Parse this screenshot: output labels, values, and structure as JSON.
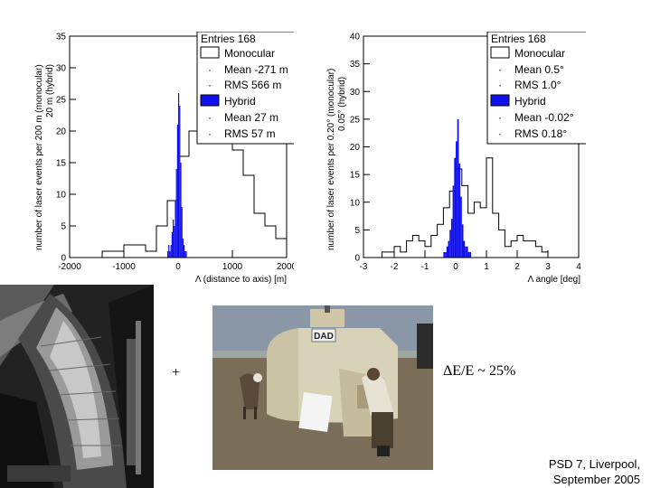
{
  "chart_data": [
    {
      "type": "histogram",
      "xlabel": "Λ (distance to axis) [m]",
      "ylabel_primary": "number of laser events per 200 m (monocular)",
      "ylabel_secondary": "20 m (hybrid)",
      "xlim": [
        -2000,
        2000
      ],
      "ylim": [
        0,
        35
      ],
      "xticks": [
        "-2000",
        "-1000",
        "0",
        "1000",
        "2000"
      ],
      "yticks": [
        "0",
        "5",
        "10",
        "15",
        "20",
        "25",
        "30",
        "35"
      ],
      "legend": {
        "entries": "Entries 168",
        "monocular_label": "Monocular",
        "monocular_mean": "Mean -271 m",
        "monocular_rms": "RMS 566 m",
        "hybrid_label": "Hybrid",
        "hybrid_mean": "Mean 27 m",
        "hybrid_rms": "RMS 57 m"
      },
      "series": [
        {
          "name": "Monocular",
          "style": "outline",
          "bin_width": 200,
          "bin_start": -2000,
          "values": [
            0,
            0,
            0,
            1,
            1,
            2,
            2,
            1,
            5,
            9,
            16,
            20,
            20,
            19,
            18,
            17,
            13,
            7,
            5,
            3,
            3,
            1,
            1,
            0,
            0,
            0,
            0,
            0,
            0,
            0
          ]
        },
        {
          "name": "Hybrid",
          "style": "filled",
          "color": "#1010ee",
          "bin_width": 20,
          "bin_start": -300,
          "values": [
            0,
            0,
            0,
            0,
            0,
            1,
            2,
            1,
            2,
            4,
            6,
            5,
            9,
            14,
            21,
            26,
            24,
            15,
            8,
            3,
            2,
            1,
            1,
            0,
            0,
            0,
            0,
            0,
            0,
            0
          ]
        }
      ]
    },
    {
      "type": "histogram",
      "xlabel": "Λ angle [deg]",
      "ylabel_primary": "number of laser events per 0.20° (monocular)",
      "ylabel_secondary": "0.05° (hybrid)",
      "xlim": [
        -3,
        4
      ],
      "ylim": [
        0,
        40
      ],
      "xticks": [
        "-3",
        "-2",
        "-1",
        "0",
        "1",
        "2",
        "3",
        "4"
      ],
      "yticks": [
        "0",
        "5",
        "10",
        "15",
        "20",
        "25",
        "30",
        "35",
        "40"
      ],
      "legend": {
        "entries": "Entries 168",
        "monocular_label": "Monocular",
        "monocular_mean": "Mean 0.5°",
        "monocular_rms": "RMS 1.0°",
        "hybrid_label": "Hybrid",
        "hybrid_mean": "Mean -0.02°",
        "hybrid_rms": "RMS 0.18°"
      },
      "series": [
        {
          "name": "Monocular",
          "style": "outline",
          "bin_width": 0.2,
          "bin_start": -3,
          "values": [
            0,
            0,
            0,
            1,
            1,
            2,
            1,
            3,
            4,
            3,
            2,
            4,
            6,
            9,
            12,
            16,
            13,
            8,
            10,
            9,
            18,
            8,
            5,
            2,
            3,
            4,
            3,
            3,
            2,
            1,
            0,
            0,
            0,
            0,
            0
          ]
        },
        {
          "name": "Hybrid",
          "style": "filled",
          "color": "#1010ee",
          "bin_width": 0.05,
          "bin_start": -0.5,
          "values": [
            0,
            0,
            1,
            1,
            2,
            3,
            5,
            7,
            13,
            18,
            21,
            25,
            17,
            11,
            6,
            3,
            2,
            2,
            1,
            1
          ]
        }
      ]
    }
  ],
  "annotations": {
    "plus": "+",
    "resolution": "ΔE/E ~ 25%"
  },
  "photos": {
    "tank_label": "DAD"
  },
  "footer": {
    "line1": "PSD 7, Liverpool,",
    "line2": "September 2005"
  }
}
